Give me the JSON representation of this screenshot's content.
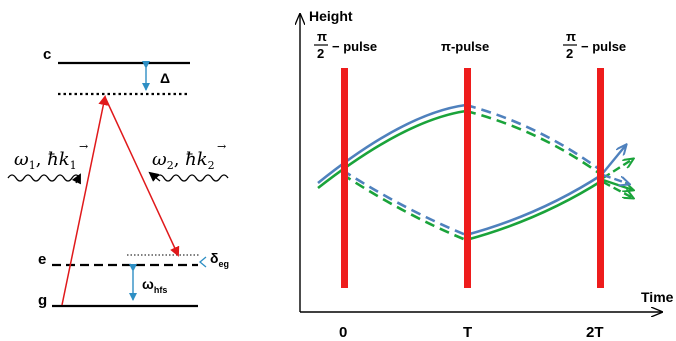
{
  "level_diagram": {
    "levels": {
      "c": "c",
      "e": "e",
      "g": "g"
    },
    "detuning_label": "Δ",
    "delta_eg_main": "δ",
    "delta_eg_sub": "eg",
    "omega_hfs_main": "ω",
    "omega_hfs_sub": "hfs",
    "beam1": {
      "omega": "ω",
      "index": "1",
      "sep": ", ",
      "hbar": "ħ",
      "k": "k",
      "kindex": "1",
      "arrow": "→"
    },
    "beam2": {
      "omega": "ω",
      "index": "2",
      "sep": ", ",
      "hbar": "ħ",
      "k": "k",
      "kindex": "2",
      "arrow": "→"
    },
    "colors": {
      "laser": "#e0191b",
      "level": "#000000",
      "interval": "#2e8fc4"
    }
  },
  "interferometer": {
    "y_axis_label": "Height",
    "x_axis_label": "Time",
    "tick_labels": [
      "0",
      "T",
      "2T"
    ],
    "pulses": [
      {
        "numerator": "π",
        "denominator": "2",
        "suffix": "− pulse"
      },
      {
        "label": "π-pulse"
      },
      {
        "numerator": "π",
        "denominator": "2",
        "suffix": "− pulse"
      }
    ],
    "colors": {
      "pulse": "#ee1c1c",
      "path_blue": "#4f81bd",
      "path_green": "#1aa33a"
    }
  }
}
